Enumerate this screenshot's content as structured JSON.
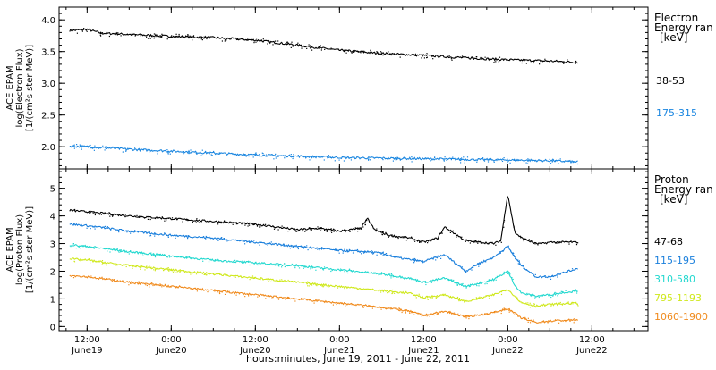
{
  "chart_data": [
    {
      "type": "line",
      "panel": "electron",
      "ylabel_lines": [
        "ACE EPAM",
        "log(Electron Flux)",
        "[1/(cm²s ster MeV)]"
      ],
      "ylim": [
        1.65,
        4.2
      ],
      "yticks": [
        2.0,
        2.5,
        3.0,
        3.5,
        4.0
      ],
      "ytick_labels": [
        "2.0",
        "2.5",
        "3.0",
        "3.5",
        "4.0"
      ],
      "legend_title_lines": [
        "Electron",
        "Energy ran",
        "[keV]"
      ],
      "series": [
        {
          "name": "38-53",
          "color": "#000000",
          "x": [
            9.5,
            12,
            14,
            18,
            24,
            30,
            36,
            42,
            48,
            54,
            60,
            66,
            72,
            78,
            82
          ],
          "y": [
            3.83,
            3.85,
            3.79,
            3.77,
            3.74,
            3.72,
            3.68,
            3.6,
            3.52,
            3.47,
            3.44,
            3.4,
            3.37,
            3.35,
            3.33
          ]
        },
        {
          "name": "175-315",
          "color": "#1a86e0",
          "x": [
            9.5,
            12,
            18,
            24,
            30,
            36,
            42,
            48,
            54,
            60,
            66,
            72,
            78,
            82
          ],
          "y": [
            2.01,
            2.0,
            1.96,
            1.93,
            1.9,
            1.87,
            1.85,
            1.83,
            1.82,
            1.81,
            1.8,
            1.79,
            1.78,
            1.76
          ]
        }
      ]
    },
    {
      "type": "line",
      "panel": "proton",
      "ylabel_lines": [
        "ACE EPAM",
        "log(Proton Flux)",
        "[1/(cm²s ster MeV)]"
      ],
      "ylim": [
        -0.15,
        5.7
      ],
      "yticks": [
        0,
        1,
        2,
        3,
        4,
        5
      ],
      "ytick_labels": [
        "0",
        "1",
        "2",
        "3",
        "4",
        "5"
      ],
      "legend_title_lines": [
        "Proton",
        "Energy ran",
        "[keV]"
      ],
      "series": [
        {
          "name": "47-68",
          "color": "#000000",
          "x": [
            9.5,
            12,
            18,
            24,
            30,
            36,
            42,
            45,
            48,
            51,
            52,
            53,
            55,
            58,
            60,
            62,
            63,
            66,
            70,
            71,
            72,
            73,
            74,
            75,
            76,
            77,
            78,
            82
          ],
          "y": [
            4.2,
            4.15,
            4.0,
            3.9,
            3.8,
            3.7,
            3.5,
            3.55,
            3.45,
            3.55,
            3.9,
            3.5,
            3.3,
            3.2,
            3.05,
            3.2,
            3.6,
            3.1,
            3.0,
            3.1,
            4.8,
            3.4,
            3.2,
            3.1,
            3.0,
            3.0,
            3.05,
            3.05
          ]
        },
        {
          "name": "115-195",
          "color": "#1a7fdc",
          "x": [
            9.5,
            12,
            18,
            24,
            30,
            36,
            42,
            48,
            52,
            54,
            56,
            60,
            63,
            66,
            68,
            70,
            72,
            73,
            74,
            75,
            76,
            78,
            80,
            82
          ],
          "y": [
            3.7,
            3.65,
            3.45,
            3.3,
            3.2,
            3.05,
            2.9,
            2.75,
            2.7,
            2.65,
            2.5,
            2.35,
            2.6,
            2.0,
            2.3,
            2.5,
            2.9,
            2.5,
            2.2,
            2.0,
            1.8,
            1.8,
            1.95,
            2.1
          ]
        },
        {
          "name": "310-580",
          "color": "#22d8cf",
          "x": [
            9.5,
            12,
            18,
            24,
            30,
            36,
            42,
            48,
            54,
            58,
            60,
            63,
            66,
            70,
            72,
            73,
            74,
            76,
            78,
            82
          ],
          "y": [
            2.95,
            2.9,
            2.7,
            2.55,
            2.4,
            2.3,
            2.2,
            2.05,
            1.9,
            1.75,
            1.6,
            1.75,
            1.45,
            1.7,
            2.0,
            1.5,
            1.2,
            1.1,
            1.15,
            1.3
          ]
        },
        {
          "name": "795-1193",
          "color": "#cfe81c",
          "x": [
            9.5,
            12,
            18,
            24,
            30,
            36,
            42,
            48,
            54,
            58,
            60,
            63,
            66,
            70,
            72,
            74,
            76,
            78,
            82
          ],
          "y": [
            2.45,
            2.4,
            2.2,
            2.05,
            1.9,
            1.75,
            1.6,
            1.45,
            1.3,
            1.2,
            1.05,
            1.15,
            0.9,
            1.15,
            1.35,
            0.85,
            0.75,
            0.8,
            0.85
          ]
        },
        {
          "name": "1060-1900",
          "color": "#f08a1c",
          "x": [
            9.5,
            12,
            18,
            24,
            30,
            36,
            42,
            48,
            54,
            58,
            60,
            63,
            66,
            70,
            72,
            74,
            76,
            78,
            82
          ],
          "y": [
            1.85,
            1.8,
            1.6,
            1.45,
            1.3,
            1.15,
            1.0,
            0.85,
            0.7,
            0.55,
            0.4,
            0.55,
            0.35,
            0.5,
            0.65,
            0.3,
            0.15,
            0.2,
            0.25
          ]
        }
      ]
    }
  ],
  "x_axis": {
    "xlim": [
      8,
      92
    ],
    "ticks": [
      {
        "x": 12,
        "top": "12:00",
        "bottom": "June19"
      },
      {
        "x": 24,
        "top": "0:00",
        "bottom": "June20"
      },
      {
        "x": 36,
        "top": "12:00",
        "bottom": "June20"
      },
      {
        "x": 48,
        "top": "0:00",
        "bottom": "June21"
      },
      {
        "x": 60,
        "top": "12:00",
        "bottom": "June21"
      },
      {
        "x": 72,
        "top": "0:00",
        "bottom": "June22"
      },
      {
        "x": 84,
        "top": "12:00",
        "bottom": "June22"
      }
    ],
    "label": "hours:minutes, June 19, 2011 - June 22, 2011"
  }
}
